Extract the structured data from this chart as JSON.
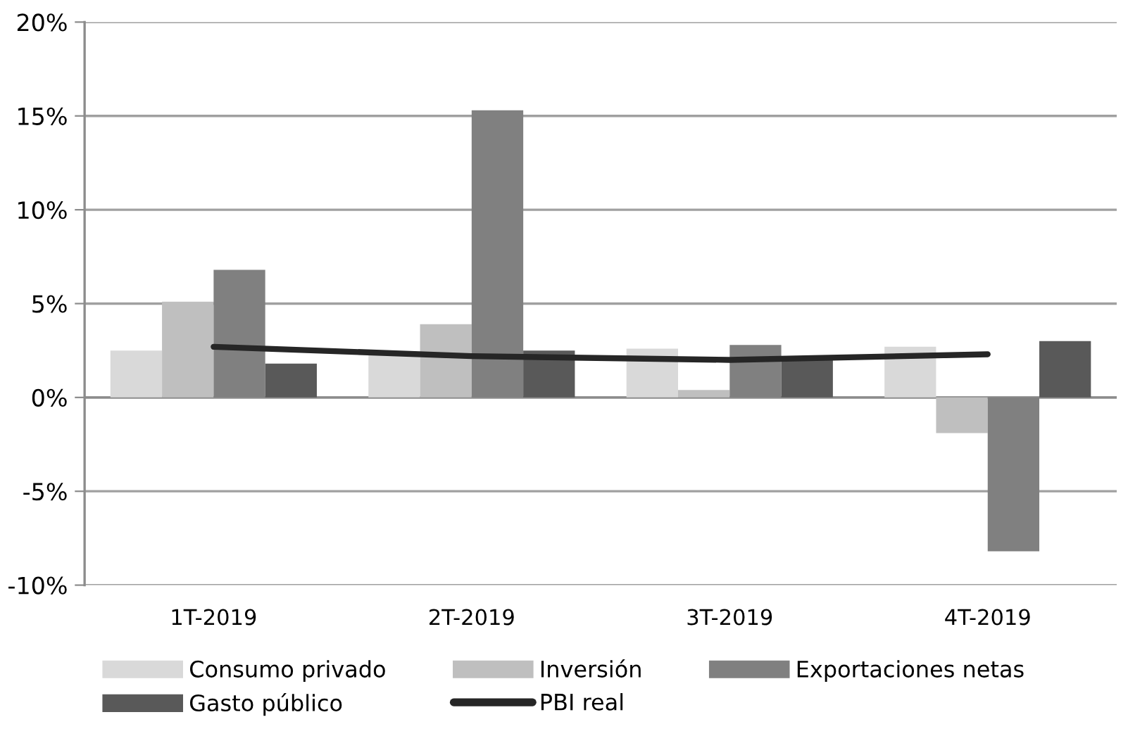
{
  "chart_data": {
    "type": "bar",
    "categories": [
      "1T-2019",
      "2T-2019",
      "3T-2019",
      "4T-2019"
    ],
    "series": [
      {
        "name": "Consumo privado",
        "color": "#d9d9d9",
        "values": [
          2.5,
          2.3,
          2.6,
          2.7
        ]
      },
      {
        "name": "Inversión",
        "color": "#bfbfbf",
        "values": [
          5.1,
          3.9,
          0.4,
          -1.9
        ]
      },
      {
        "name": "Exportaciones netas",
        "color": "#808080",
        "values": [
          6.8,
          15.3,
          2.8,
          -8.2
        ]
      },
      {
        "name": "Gasto público",
        "color": "#595959",
        "values": [
          1.8,
          2.5,
          2.0,
          3.0
        ]
      },
      {
        "name": "PBI real",
        "color": "#262626",
        "type": "line",
        "values": [
          2.7,
          2.2,
          2.0,
          2.3
        ]
      }
    ],
    "ylim": [
      -10,
      20
    ],
    "yticks": [
      {
        "value": -10,
        "label": "-10%"
      },
      {
        "value": -5,
        "label": "-5%"
      },
      {
        "value": 0,
        "label": "0%"
      },
      {
        "value": 5,
        "label": "5%"
      },
      {
        "value": 10,
        "label": "10%"
      },
      {
        "value": 15,
        "label": "15%"
      },
      {
        "value": 20,
        "label": "20%"
      }
    ],
    "grid": "y",
    "legend": "bottom"
  }
}
